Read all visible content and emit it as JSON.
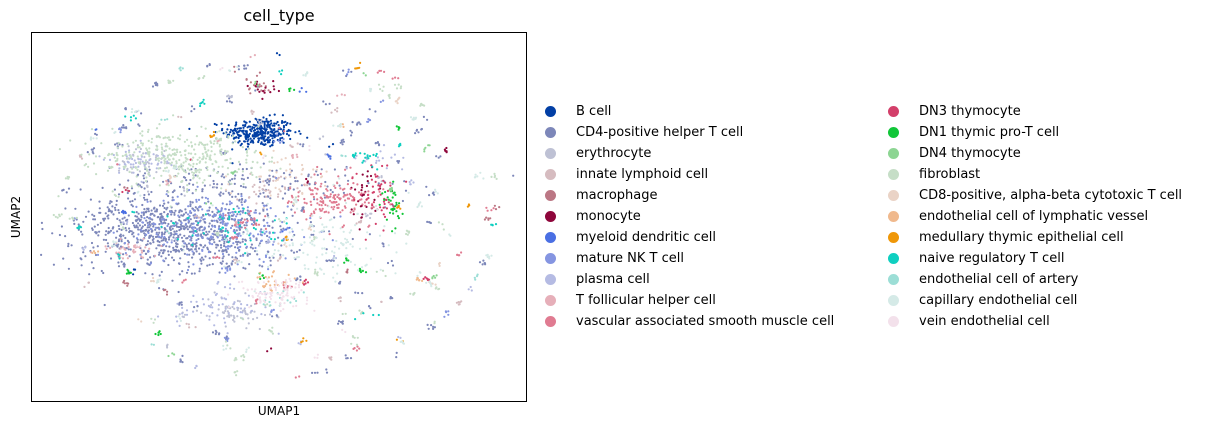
{
  "chart_data": {
    "type": "scatter",
    "title": "cell_type",
    "xlabel": "UMAP1",
    "ylabel": "UMAP2",
    "xlim": [
      -10,
      10
    ],
    "ylim": [
      -10,
      10
    ],
    "grid": false,
    "ticks": false,
    "legend_position": "right",
    "series": [
      {
        "name": "B cell",
        "color": "#023fa5",
        "clusters": [
          [
            -0.8,
            4.6,
            0.7,
            0.4,
            320
          ]
        ],
        "scatter": 10
      },
      {
        "name": "CD4-positive helper T cell",
        "color": "#7d87b9",
        "clusters": [
          [
            -4.0,
            -0.8,
            2.2,
            1.1,
            900
          ],
          [
            -1.5,
            2.0,
            2.8,
            0.5,
            120
          ]
        ],
        "scatter": 260
      },
      {
        "name": "erythrocyte",
        "color": "#bec1d4",
        "clusters": [
          [
            -5.6,
            3.2,
            0.5,
            0.4,
            40
          ],
          [
            -1.8,
            -5.1,
            0.7,
            0.4,
            60
          ]
        ],
        "scatter": 45
      },
      {
        "name": "innate lymphoid cell",
        "color": "#d6bcc0",
        "clusters": [
          [
            -0.5,
            1.5,
            1.0,
            0.5,
            40
          ]
        ],
        "scatter": 60
      },
      {
        "name": "macrophage",
        "color": "#bb7784",
        "clusters": [
          [
            -1.0,
            7.3,
            0.4,
            0.3,
            20
          ]
        ],
        "scatter": 25
      },
      {
        "name": "monocyte",
        "color": "#8e063b",
        "clusters": [
          [
            -0.7,
            7.0,
            0.3,
            0.2,
            15
          ],
          [
            3.5,
            1.3,
            0.3,
            0.8,
            30
          ]
        ],
        "scatter": 10
      },
      {
        "name": "myeloid dendritic cell",
        "color": "#4a6fe3",
        "clusters": [],
        "scatter": 20
      },
      {
        "name": "mature NK T cell",
        "color": "#8595e1",
        "clusters": [
          [
            -2.5,
            -0.5,
            1.8,
            0.9,
            250
          ]
        ],
        "scatter": 40
      },
      {
        "name": "plasma cell",
        "color": "#b5bbe3",
        "clusters": [
          [
            -5.8,
            3.0,
            0.8,
            0.5,
            60
          ],
          [
            -2.4,
            -4.8,
            1.0,
            0.5,
            60
          ],
          [
            4.0,
            3.0,
            0.6,
            0.3,
            20
          ]
        ],
        "scatter": 40
      },
      {
        "name": "T follicular helper cell",
        "color": "#e6afb9",
        "clusters": [
          [
            -6.1,
            -1.8,
            0.6,
            0.3,
            40
          ]
        ],
        "scatter": 25
      },
      {
        "name": "vascular associated smooth muscle cell",
        "color": "#e07b91",
        "clusters": [
          [
            2.2,
            1.0,
            0.9,
            0.7,
            160
          ],
          [
            -1.3,
            -0.3,
            0.4,
            0.3,
            20
          ]
        ],
        "scatter": 50
      },
      {
        "name": "DN3 thymocyte",
        "color": "#d33f6a",
        "clusters": [
          [
            4.0,
            1.2,
            0.4,
            0.8,
            50
          ]
        ],
        "scatter": 15
      },
      {
        "name": "DN1 thymic pro-T cell",
        "color": "#11c638",
        "clusters": [
          [
            4.6,
            0.7,
            0.2,
            0.6,
            30
          ]
        ],
        "scatter": 30
      },
      {
        "name": "DN4 thymocyte",
        "color": "#8dd593",
        "clusters": [],
        "scatter": 30
      },
      {
        "name": "fibroblast",
        "color": "#c6dec7",
        "clusters": [
          [
            -4.0,
            3.2,
            1.6,
            0.8,
            350
          ]
        ],
        "scatter": 150
      },
      {
        "name": "CD8-positive, alpha-beta cytotoxic T cell",
        "color": "#ead3c6",
        "clusters": [
          [
            0.2,
            2.0,
            1.2,
            0.7,
            40
          ]
        ],
        "scatter": 30
      },
      {
        "name": "endothelial cell of lymphatic vessel",
        "color": "#f0b98d",
        "clusters": [
          [
            -0.2,
            -3.4,
            0.4,
            0.3,
            20
          ]
        ],
        "scatter": 15
      },
      {
        "name": "medullary thymic epithelial cell",
        "color": "#ef9708",
        "clusters": [],
        "scatter": 30
      },
      {
        "name": "naive regulatory T cell",
        "color": "#0fcfc0",
        "clusters": [
          [
            -1.8,
            -0.5,
            1.2,
            0.5,
            50
          ],
          [
            3.7,
            3.0,
            0.3,
            0.3,
            15
          ]
        ],
        "scatter": 45
      },
      {
        "name": "endothelial cell of artery",
        "color": "#9cded6",
        "clusters": [
          [
            0.0,
            -4.5,
            0.5,
            0.3,
            15
          ]
        ],
        "scatter": 25
      },
      {
        "name": "capillary endothelial cell",
        "color": "#d5eae7",
        "clusters": [
          [
            1.6,
            -1.5,
            1.5,
            1.1,
            120
          ]
        ],
        "scatter": 120
      },
      {
        "name": "vein endothelial cell",
        "color": "#f3e1eb",
        "clusters": [
          [
            -0.2,
            -4.1,
            0.7,
            0.4,
            100
          ]
        ],
        "scatter": 25
      }
    ]
  }
}
